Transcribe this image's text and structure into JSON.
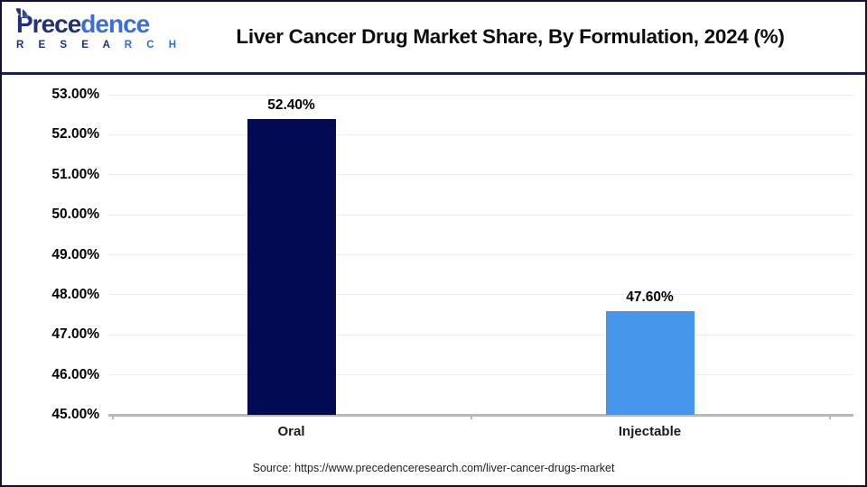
{
  "logo": {
    "name_part1": "Prece",
    "name_part2": "dence",
    "subtitle_part1": "R E S E A ",
    "subtitle_part2": "R C H"
  },
  "chart_data": {
    "type": "bar",
    "title": "Liver Cancer Drug Market Share, By Formulation, 2024 (%)",
    "categories": [
      "Oral",
      "Injectable"
    ],
    "values": [
      52.4,
      47.6
    ],
    "value_labels": [
      "52.40%",
      "47.60%"
    ],
    "bar_colors": [
      "#020b52",
      "#4596ec"
    ],
    "ylim": [
      45,
      53
    ],
    "ytick_step": 1,
    "ytick_labels": [
      "45.00%",
      "46.00%",
      "47.00%",
      "48.00%",
      "49.00%",
      "50.00%",
      "51.00%",
      "52.00%",
      "53.00%"
    ],
    "grid": true,
    "legend": false,
    "gridline_color": "#ededed",
    "axis_color": "#b8b8b8"
  },
  "footer": {
    "source": "Source: https://www.precedenceresearch.com/liver-cancer-drugs-market"
  }
}
